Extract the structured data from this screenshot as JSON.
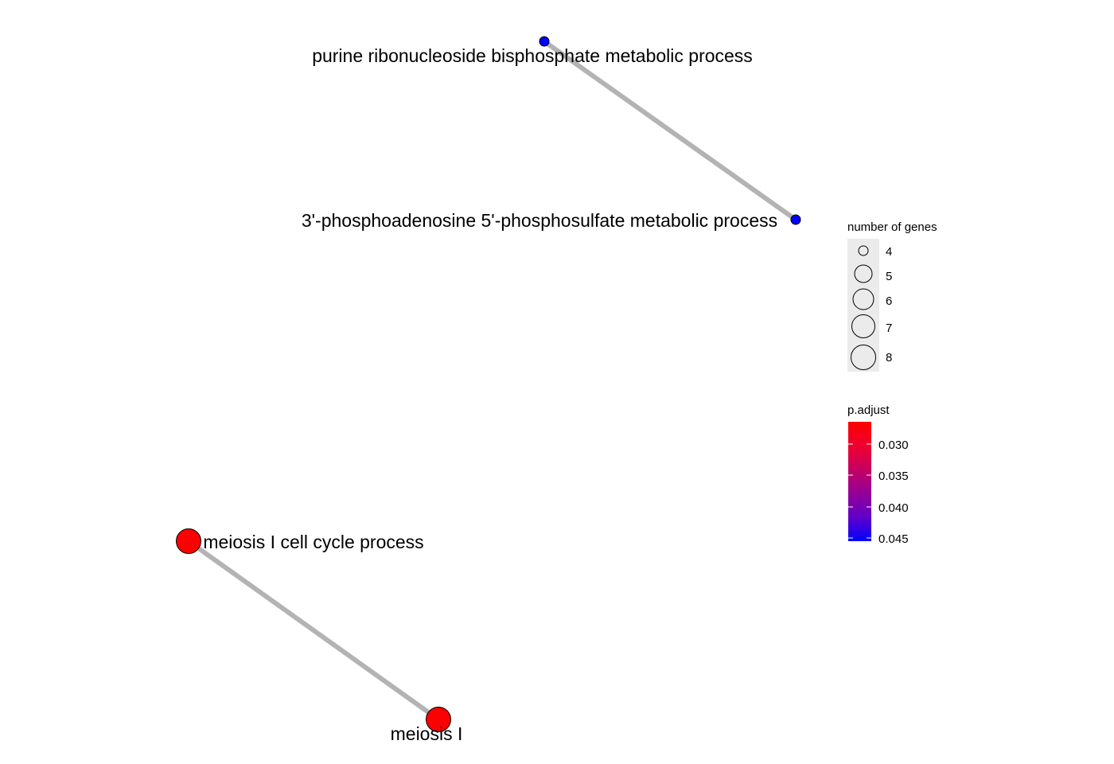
{
  "network": {
    "nodes": [
      {
        "id": "n1",
        "label": "purine ribonucleoside bisphosphate metabolic process",
        "genes": 4,
        "p_adjust": 0.045
      },
      {
        "id": "n2",
        "label": "3'-phosphoadenosine 5'-phosphosulfate metabolic process",
        "genes": 4,
        "p_adjust": 0.045
      },
      {
        "id": "n3",
        "label": "meiosis I cell cycle process",
        "genes": 8,
        "p_adjust": 0.03
      },
      {
        "id": "n4",
        "label": "meiosis I",
        "genes": 8,
        "p_adjust": 0.03
      }
    ],
    "edges": [
      {
        "source": "n1",
        "target": "n2"
      },
      {
        "source": "n3",
        "target": "n4"
      }
    ]
  },
  "legend": {
    "size_title": "number of genes",
    "size_items": [
      "4",
      "5",
      "6",
      "7",
      "8"
    ],
    "color_title": "p.adjust",
    "color_ticks": [
      "0.030",
      "0.035",
      "0.040",
      "0.045"
    ],
    "color_low": "#ff0000",
    "color_high": "#0000ff"
  },
  "colors": {
    "edge": "#b3b3b3",
    "node_stroke": "#000000",
    "key_bg": "#ebebeb"
  }
}
